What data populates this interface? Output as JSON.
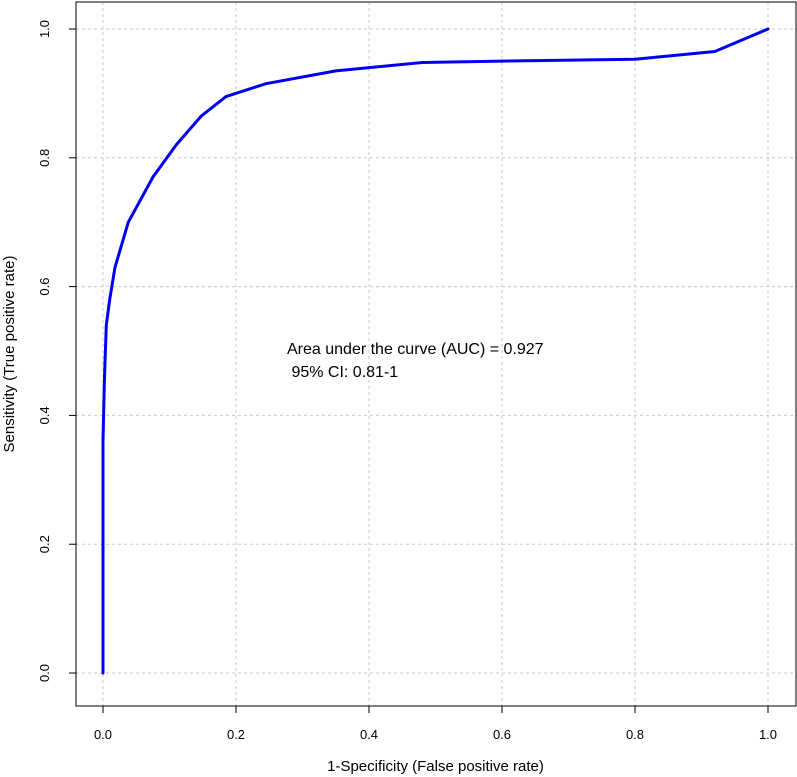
{
  "chart_data": {
    "type": "line",
    "title": "",
    "xlabel": "1-Specificity (False positive rate)",
    "ylabel": "Sensitivity (True positive rate)",
    "xlim": [
      0,
      1
    ],
    "ylim": [
      0,
      1
    ],
    "xticks": [
      "0.0",
      "0.2",
      "0.4",
      "0.6",
      "0.8",
      "1.0"
    ],
    "yticks": [
      "0.0",
      "0.2",
      "0.4",
      "0.6",
      "0.8",
      "1.0"
    ],
    "grid": true,
    "series": [
      {
        "color": "#0000ee",
        "x": [
          0.0,
          0.0,
          0.0,
          0.002,
          0.005,
          0.01,
          0.018,
          0.038,
          0.075,
          0.11,
          0.148,
          0.185,
          0.245,
          0.35,
          0.48,
          0.65,
          0.8,
          0.92,
          1.0
        ],
        "y": [
          0.0,
          0.3,
          0.36,
          0.45,
          0.54,
          0.58,
          0.63,
          0.7,
          0.77,
          0.82,
          0.865,
          0.895,
          0.915,
          0.935,
          0.948,
          0.951,
          0.953,
          0.965,
          1.0
        ]
      }
    ],
    "annotations": [
      "Area under the curve (AUC) = 0.927",
      " 95% CI: 0.81-1"
    ]
  }
}
